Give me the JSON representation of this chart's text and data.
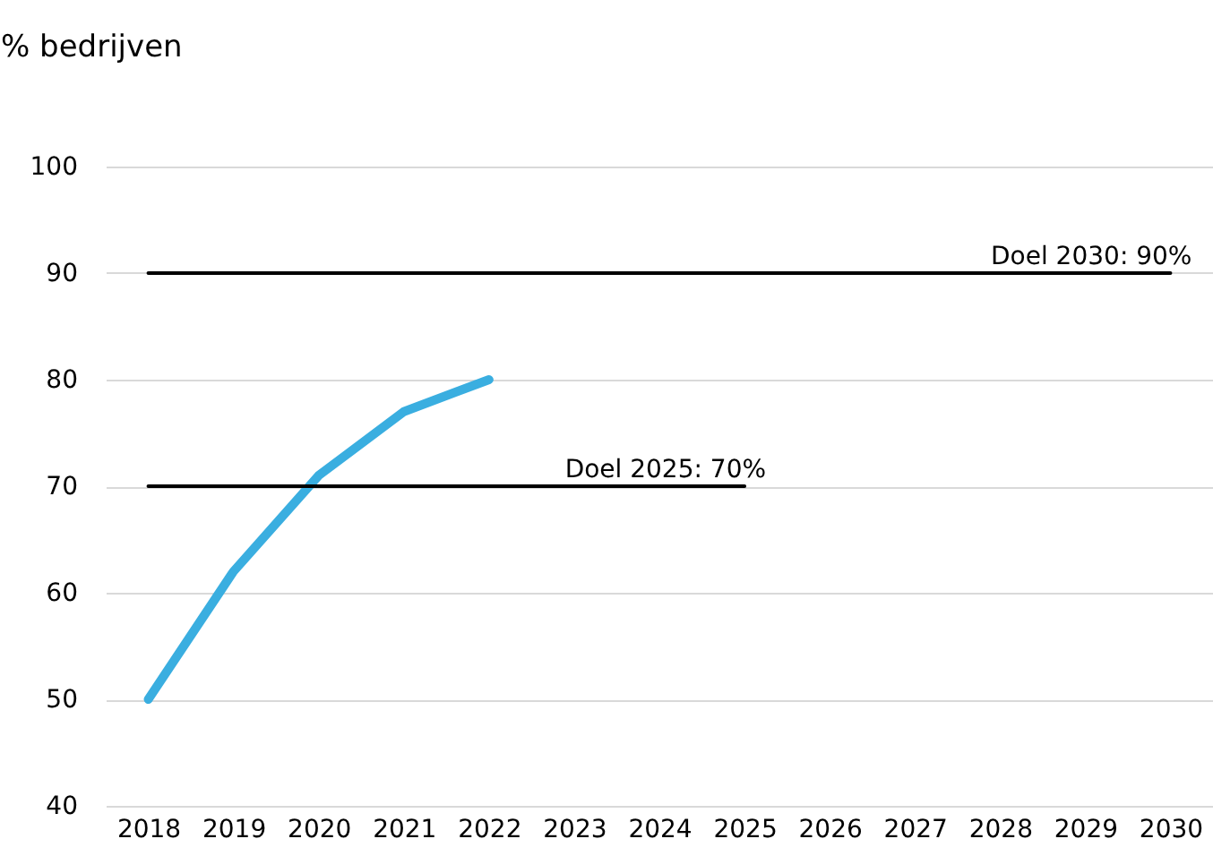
{
  "chart_data": {
    "type": "line",
    "ylabel": "% bedrijven",
    "categories": [
      "2018",
      "2019",
      "2020",
      "2021",
      "2022",
      "2023",
      "2024",
      "2025",
      "2026",
      "2027",
      "2028",
      "2029",
      "2030"
    ],
    "series": [
      {
        "color": "#3aaee0",
        "values": [
          50,
          62,
          71,
          77,
          80,
          null,
          null,
          null,
          null,
          null,
          null,
          null,
          null
        ]
      },
      {
        "name": "Doel 2030: 90%",
        "color": "#000000",
        "values": [
          90,
          90,
          90,
          90,
          90,
          90,
          90,
          90,
          90,
          90,
          90,
          90,
          90
        ]
      },
      {
        "name": "Doel 2025: 70%",
        "color": "#000000",
        "values": [
          70,
          70,
          70,
          70,
          70,
          70,
          70,
          70,
          null,
          null,
          null,
          null,
          null
        ]
      }
    ],
    "ylim": [
      40,
      100
    ],
    "yticks": [
      40,
      50,
      60,
      70,
      80,
      90,
      100
    ],
    "grid": "y",
    "marker": "none",
    "line_style": "solid"
  }
}
